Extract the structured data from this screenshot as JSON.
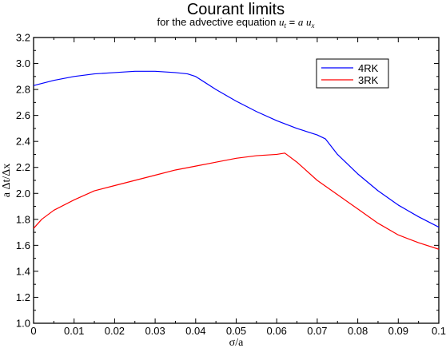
{
  "chart_data": {
    "type": "line",
    "title": "Courant limits",
    "subtitle": {
      "prefix": "for the advective equation ",
      "u": "u",
      "t": "t",
      "equals": " = ",
      "a": "a",
      "space": " ",
      "ux": "u",
      "x": "x"
    },
    "xlabel": "σ/a",
    "ylabel": "a Δt/Δx",
    "xlim": [
      0,
      0.1
    ],
    "ylim": [
      1.0,
      3.2
    ],
    "xticks": [
      0,
      0.01,
      0.02,
      0.03,
      0.04,
      0.05,
      0.06,
      0.07,
      0.08,
      0.09,
      0.1
    ],
    "xtick_labels": [
      "0",
      "0.01",
      "0.02",
      "0.03",
      "0.04",
      "0.05",
      "0.06",
      "0.07",
      "0.08",
      "0.09",
      "0.1"
    ],
    "yticks": [
      1.0,
      1.2,
      1.4,
      1.6,
      1.8,
      2.0,
      2.2,
      2.4,
      2.6,
      2.8,
      3.0,
      3.2
    ],
    "ytick_labels": [
      "1.0",
      "1.2",
      "1.4",
      "1.6",
      "1.8",
      "2.0",
      "2.2",
      "2.4",
      "2.6",
      "2.8",
      "3.0",
      "3.2"
    ],
    "grid": false,
    "legend_position": "top-right",
    "series": [
      {
        "name": "4RK",
        "color": "#0000ff",
        "x": [
          0.0,
          0.005,
          0.01,
          0.015,
          0.02,
          0.025,
          0.028,
          0.03,
          0.035,
          0.038,
          0.04,
          0.045,
          0.05,
          0.055,
          0.06,
          0.065,
          0.07,
          0.072,
          0.075,
          0.08,
          0.085,
          0.09,
          0.095,
          0.1
        ],
        "y": [
          2.83,
          2.87,
          2.9,
          2.92,
          2.93,
          2.94,
          2.94,
          2.94,
          2.93,
          2.92,
          2.9,
          2.8,
          2.71,
          2.63,
          2.56,
          2.5,
          2.45,
          2.42,
          2.3,
          2.15,
          2.02,
          1.91,
          1.82,
          1.74
        ]
      },
      {
        "name": "3RK",
        "color": "#ff0000",
        "x": [
          0.0,
          0.002,
          0.005,
          0.01,
          0.015,
          0.02,
          0.025,
          0.03,
          0.035,
          0.04,
          0.045,
          0.05,
          0.055,
          0.06,
          0.062,
          0.065,
          0.07,
          0.075,
          0.08,
          0.085,
          0.09,
          0.095,
          0.1
        ],
        "y": [
          1.73,
          1.8,
          1.87,
          1.95,
          2.02,
          2.06,
          2.1,
          2.14,
          2.18,
          2.21,
          2.24,
          2.27,
          2.29,
          2.3,
          2.31,
          2.24,
          2.1,
          1.99,
          1.88,
          1.77,
          1.68,
          1.62,
          1.57
        ]
      }
    ]
  }
}
